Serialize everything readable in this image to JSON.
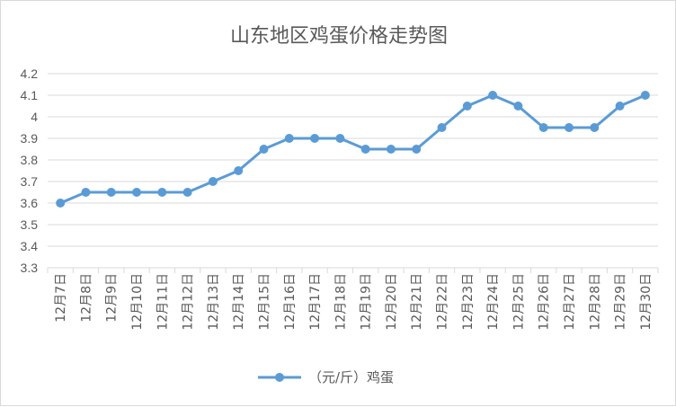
{
  "chart_data": {
    "type": "line",
    "title": "山东地区鸡蛋价格走势图",
    "categories": [
      "12月7日",
      "12月8日",
      "12月9日",
      "12月10日",
      "12月11日",
      "12月12日",
      "12月13日",
      "12月14日",
      "12月15日",
      "12月16日",
      "12月17日",
      "12月18日",
      "12月19日",
      "12月20日",
      "12月21日",
      "12月22日",
      "12月23日",
      "12月24日",
      "12月25日",
      "12月26日",
      "12月27日",
      "12月28日",
      "12月29日",
      "12月30日"
    ],
    "series": [
      {
        "name": "（元/斤）鸡蛋",
        "values": [
          3.6,
          3.65,
          3.65,
          3.65,
          3.65,
          3.65,
          3.7,
          3.75,
          3.85,
          3.9,
          3.9,
          3.9,
          3.85,
          3.85,
          3.85,
          3.95,
          4.05,
          4.1,
          4.05,
          3.95,
          3.95,
          3.95,
          4.05,
          4.1
        ]
      }
    ],
    "yticks": [
      "3.3",
      "3.4",
      "3.5",
      "3.6",
      "3.7",
      "3.8",
      "3.9",
      "4",
      "4.1",
      "4.2"
    ],
    "ylim": [
      3.3,
      4.2
    ],
    "grid": true,
    "legend_position": "bottom",
    "series_color": "#5b9bd5"
  }
}
